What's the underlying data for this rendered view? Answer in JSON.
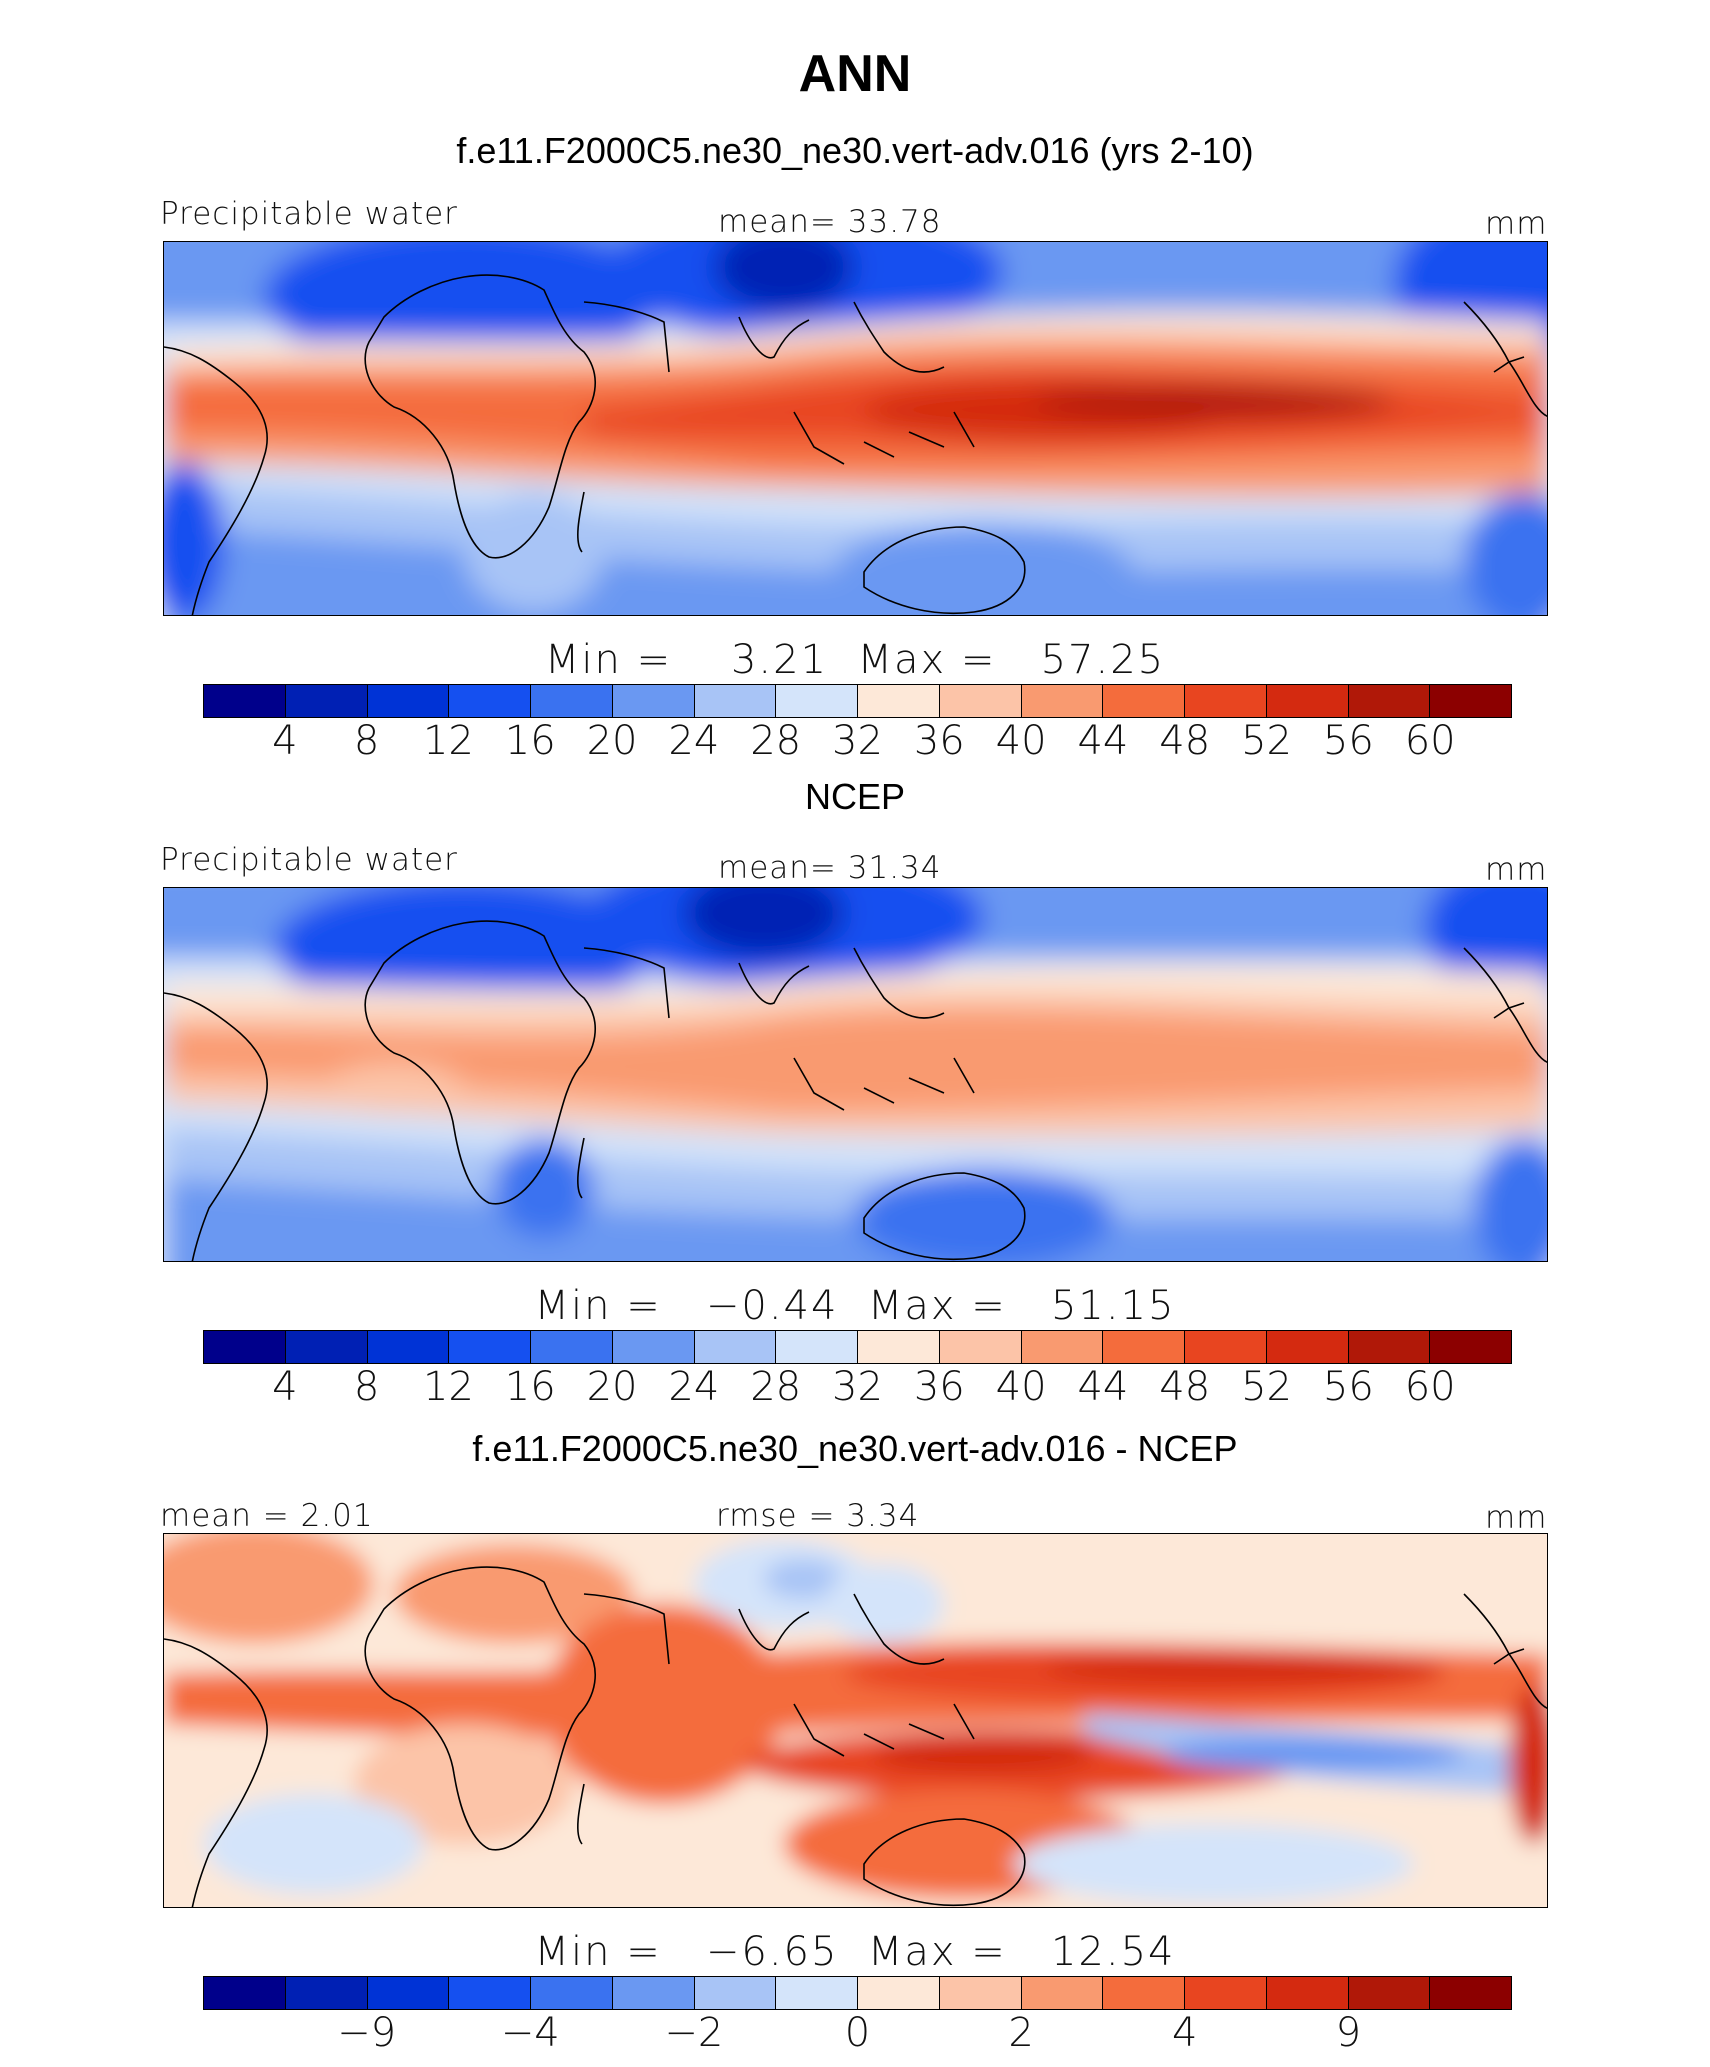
{
  "title": "ANN",
  "colors": [
    "#00008b",
    "#0020b4",
    "#0033d6",
    "#1550f0",
    "#3a72f0",
    "#6a98f2",
    "#a8c4f6",
    "#d4e4fa",
    "#fde8d8",
    "#fcc4a8",
    "#f99a70",
    "#f46c3c",
    "#e84520",
    "#d42a10",
    "#b01808",
    "#8c0000"
  ],
  "panels": [
    {
      "subtitle": "f.e11.F2000C5.ne30_ne30.vert-adv.016 (yrs 2-10)",
      "left_label": "Precipitable water",
      "center_label": "mean=  33.78",
      "units": "mm",
      "min_label": "Min  =",
      "min_value": "3.21",
      "max_label": "Max  =",
      "max_value": "57.25",
      "ticks": [
        "4",
        "8",
        "12",
        "16",
        "20",
        "24",
        "28",
        "32",
        "36",
        "40",
        "44",
        "48",
        "52",
        "56",
        "60"
      ]
    },
    {
      "subtitle": "NCEP",
      "left_label": "Precipitable water",
      "center_label": "mean=  31.34",
      "units": "mm",
      "min_label": "Min  =",
      "min_value": "−0.44",
      "max_label": "Max  =",
      "max_value": "51.15",
      "ticks": [
        "4",
        "8",
        "12",
        "16",
        "20",
        "24",
        "28",
        "32",
        "36",
        "40",
        "44",
        "48",
        "52",
        "56",
        "60"
      ]
    },
    {
      "subtitle": "f.e11.F2000C5.ne30_ne30.vert-adv.016 - NCEP",
      "left_label": "mean =   2.01",
      "center_label": "rmse =   3.34",
      "units": "mm",
      "min_label": "Min  =",
      "min_value": "−6.65",
      "max_label": "Max  =",
      "max_value": "12.54",
      "ticks": [
        "−9",
        "−4",
        "−2",
        "0",
        "2",
        "4",
        "9"
      ]
    }
  ]
}
